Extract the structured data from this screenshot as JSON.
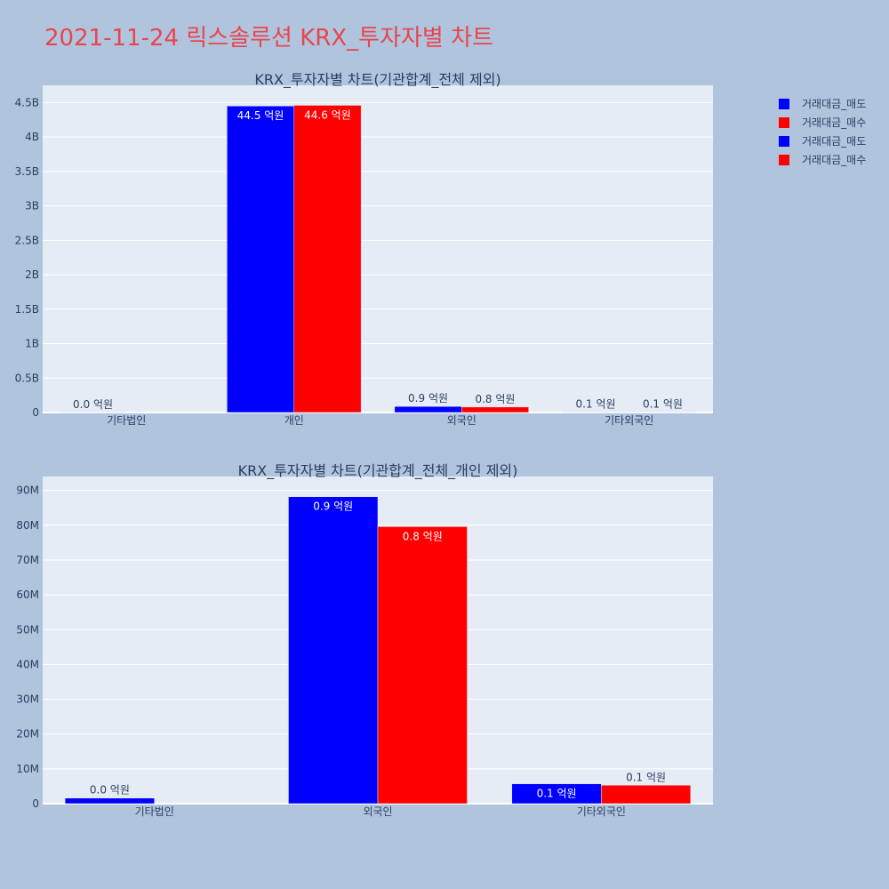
{
  "page": {
    "title": "2021-11-24 릭스솔루션 KRX_투자자별 차트"
  },
  "legend": {
    "items": [
      {
        "label": "거래대금_매도",
        "color": "#0000ff"
      },
      {
        "label": "거래대금_매수",
        "color": "#ff0000"
      },
      {
        "label": "거래대금_매도",
        "color": "#0000ff"
      },
      {
        "label": "거래대금_매수",
        "color": "#ff0000"
      }
    ]
  },
  "chart_data": [
    {
      "type": "bar",
      "title": "KRX_투자자별 차트(기관합계_전체 제외)",
      "categories": [
        "기타법인",
        "개인",
        "외국인",
        "기타외국인"
      ],
      "series": [
        {
          "name": "거래대금_매도",
          "color": "#0000ff",
          "values": [
            1600000,
            4450000000,
            88000000,
            5700000
          ],
          "labels": [
            "0.0 억원",
            "44.5 억원",
            "0.9 억원",
            "0.1 억원"
          ]
        },
        {
          "name": "거래대금_매수",
          "color": "#ff0000",
          "values": [
            0,
            4460000000,
            79500000,
            5300000
          ],
          "labels": [
            "",
            "44.6 억원",
            "0.8 억원",
            "0.1 억원"
          ]
        }
      ],
      "ylim": [
        0,
        4750000000
      ],
      "yticks": [
        0,
        500000000,
        1000000000,
        1500000000,
        2000000000,
        2500000000,
        3000000000,
        3500000000,
        4000000000,
        4500000000
      ],
      "ytick_labels": [
        "0",
        "0.5B",
        "1B",
        "1.5B",
        "2B",
        "2.5B",
        "3B",
        "3.5B",
        "4B",
        "4.5B"
      ],
      "grid": true,
      "legend": "right"
    },
    {
      "type": "bar",
      "title": "KRX_투자자별 차트(기관합계_전체_개인 제외)",
      "categories": [
        "기타법인",
        "외국인",
        "기타외국인"
      ],
      "series": [
        {
          "name": "거래대금_매도",
          "color": "#0000ff",
          "values": [
            1600000,
            88200000,
            5700000
          ],
          "labels": [
            "0.0 억원",
            "0.9 억원",
            "0.1 억원"
          ]
        },
        {
          "name": "거래대금_매수",
          "color": "#ff0000",
          "values": [
            0,
            79600000,
            5300000
          ],
          "labels": [
            "",
            "0.8 억원",
            "0.1 억원"
          ]
        }
      ],
      "ylim": [
        0,
        94000000
      ],
      "yticks": [
        0,
        10000000,
        20000000,
        30000000,
        40000000,
        50000000,
        60000000,
        70000000,
        80000000,
        90000000
      ],
      "ytick_labels": [
        "0",
        "10M",
        "20M",
        "30M",
        "40M",
        "50M",
        "60M",
        "70M",
        "80M",
        "90M"
      ],
      "grid": true,
      "legend": "right"
    }
  ]
}
